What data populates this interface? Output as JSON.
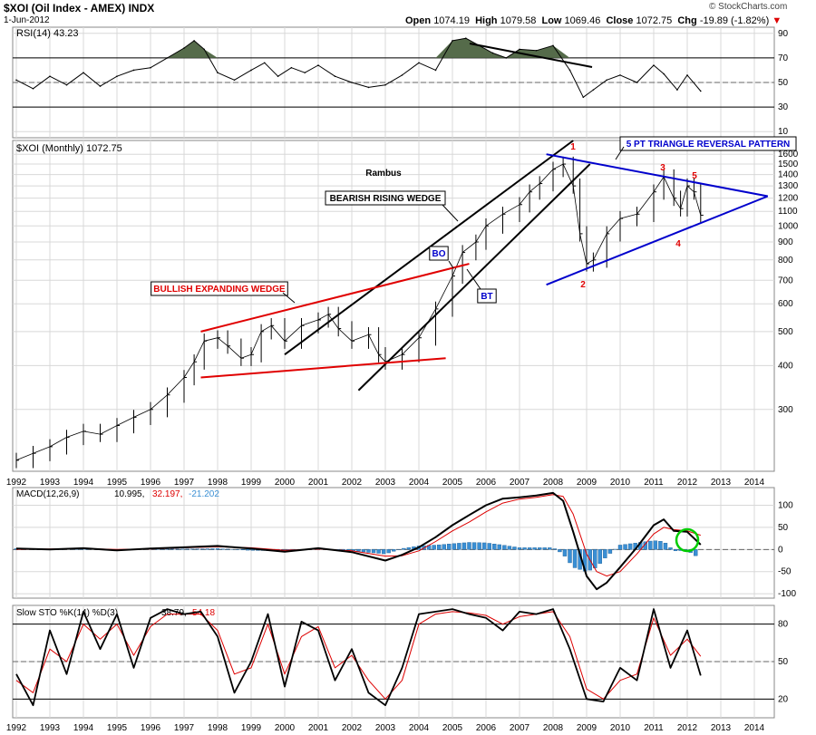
{
  "header": {
    "ticker_line": "$XOI (Oil Index - AMEX) INDX",
    "date": "1-Jun-2012",
    "open_label": "Open",
    "open": "1074.19",
    "high_label": "High",
    "high": "1079.58",
    "low_label": "Low",
    "low": "1069.46",
    "close_label": "Close",
    "close": "1072.75",
    "chg_label": "Chg",
    "chg": "-19.89 (-1.82%)",
    "chg_marker": "▼",
    "watermark": "© StockCharts.com"
  },
  "colors": {
    "price": "#000000",
    "rsi_fill": "#556b4a",
    "macd": "#000000",
    "signal": "#dd0000",
    "hist": "#3a8fd4",
    "red": "#e00000",
    "blue": "#0000cc",
    "green": "#00cc00",
    "grid": "#d8d8d8"
  },
  "chart_data": [
    {
      "type": "line",
      "panel": "rsi",
      "legend": [
        "RSI(14) 43.23"
      ],
      "ylabel": "",
      "yticks": [
        90,
        70,
        50,
        30,
        10
      ],
      "ylim": [
        5,
        95
      ],
      "reference_lines": [
        70,
        50,
        30
      ],
      "series": [
        {
          "name": "RSI(14)",
          "x": [
            1992.0,
            1992.5,
            1993.0,
            1993.5,
            1994.0,
            1994.5,
            1995.0,
            1995.5,
            1996.0,
            1996.5,
            1997.0,
            1997.3,
            1997.6,
            1998.0,
            1998.5,
            1999.0,
            1999.4,
            1999.8,
            2000.2,
            2000.6,
            2001.0,
            2001.5,
            2002.0,
            2002.5,
            2003.0,
            2003.5,
            2004.0,
            2004.5,
            2005.0,
            2005.4,
            2005.8,
            2006.2,
            2006.6,
            2007.0,
            2007.5,
            2008.0,
            2008.5,
            2008.9,
            2009.2,
            2009.6,
            2010.0,
            2010.5,
            2011.0,
            2011.3,
            2011.7,
            2012.0,
            2012.4
          ],
          "values": [
            52,
            45,
            55,
            48,
            58,
            47,
            55,
            60,
            62,
            70,
            78,
            84,
            77,
            58,
            52,
            60,
            66,
            55,
            62,
            58,
            64,
            55,
            50,
            46,
            48,
            56,
            66,
            60,
            84,
            86,
            80,
            74,
            70,
            77,
            76,
            80,
            60,
            38,
            44,
            52,
            56,
            50,
            64,
            57,
            44,
            56,
            43
          ]
        }
      ]
    },
    {
      "type": "line",
      "panel": "price",
      "legend": [
        "$XOI (Monthly) 1072.75"
      ],
      "scale": "log",
      "yticks": [
        1600,
        1500,
        1400,
        1300,
        1200,
        1100,
        1000,
        900,
        800,
        700,
        600,
        500,
        400,
        300
      ],
      "ylim": [
        200,
        1700
      ],
      "xticks": [
        "1992",
        "1993",
        "1994",
        "1995",
        "1996",
        "1997",
        "1998",
        "1999",
        "2000",
        "2001",
        "2002",
        "2003",
        "2004",
        "2005",
        "2006",
        "2007",
        "2008",
        "2009",
        "2010",
        "2011",
        "2012",
        "2013",
        "2014"
      ],
      "series": [
        {
          "name": "$XOI (Monthly)",
          "x": [
            1992.0,
            1992.5,
            1993.0,
            1993.5,
            1994.0,
            1994.5,
            1995.0,
            1995.5,
            1996.0,
            1996.5,
            1997.0,
            1997.3,
            1997.6,
            1998.0,
            1998.3,
            1998.7,
            1999.0,
            1999.3,
            1999.6,
            2000.0,
            2000.5,
            2001.0,
            2001.3,
            2001.6,
            2002.0,
            2002.5,
            2002.8,
            2003.0,
            2003.5,
            2004.0,
            2004.5,
            2005.0,
            2005.3,
            2005.7,
            2006.0,
            2006.5,
            2007.0,
            2007.3,
            2007.6,
            2008.0,
            2008.3,
            2008.6,
            2008.8,
            2009.0,
            2009.2,
            2009.6,
            2010.0,
            2010.5,
            2011.0,
            2011.3,
            2011.6,
            2011.8,
            2012.0,
            2012.2,
            2012.4
          ],
          "values": [
            215,
            225,
            235,
            250,
            260,
            255,
            270,
            285,
            300,
            330,
            370,
            410,
            470,
            480,
            455,
            420,
            430,
            500,
            520,
            470,
            520,
            540,
            560,
            510,
            470,
            490,
            430,
            410,
            430,
            480,
            580,
            720,
            840,
            900,
            1000,
            1080,
            1150,
            1250,
            1320,
            1450,
            1500,
            1300,
            950,
            780,
            800,
            950,
            1050,
            1080,
            1250,
            1380,
            1200,
            1120,
            1300,
            1250,
            1072.75
          ]
        }
      ],
      "annotations": [
        "Rambus",
        "BEARISH RISING WEDGE",
        "BULLISH EXPANDING WEDGE",
        "5 PT TRIANGLE REVERSAL PATTERN",
        "BO",
        "BT",
        "1",
        "2",
        "3",
        "4",
        "5"
      ]
    },
    {
      "type": "line",
      "panel": "macd",
      "legend": [
        "MACD(12,26,9)",
        "10.995,",
        "32.197,",
        "-21.202"
      ],
      "yticks": [
        100,
        50,
        0,
        -50,
        -100
      ],
      "ylim": [
        -110,
        140
      ],
      "x": [
        1992.0,
        1993.0,
        1994.0,
        1995.0,
        1996.0,
        1997.0,
        1998.0,
        1999.0,
        2000.0,
        2001.0,
        2002.0,
        2003.0,
        2003.5,
        2004.0,
        2004.5,
        2005.0,
        2005.5,
        2006.0,
        2006.5,
        2007.0,
        2007.5,
        2008.0,
        2008.3,
        2008.6,
        2009.0,
        2009.3,
        2009.6,
        2010.0,
        2010.5,
        2011.0,
        2011.3,
        2011.6,
        2012.0,
        2012.4
      ],
      "series": [
        {
          "name": "MACD",
          "values": [
            2,
            0,
            3,
            -2,
            2,
            5,
            8,
            2,
            -5,
            3,
            -6,
            -25,
            -12,
            5,
            28,
            55,
            78,
            100,
            115,
            118,
            122,
            128,
            110,
            40,
            -60,
            -90,
            -75,
            -40,
            5,
            55,
            68,
            42,
            40,
            10.995
          ]
        },
        {
          "name": "Signal",
          "values": [
            0,
            1,
            2,
            0,
            1,
            4,
            6,
            4,
            -2,
            1,
            -3,
            -15,
            -14,
            -3,
            18,
            42,
            62,
            85,
            105,
            114,
            118,
            124,
            120,
            80,
            -10,
            -50,
            -60,
            -50,
            -10,
            35,
            50,
            45,
            42,
            32.197
          ]
        },
        {
          "name": "Histogram",
          "values": [
            2,
            -1,
            1,
            -2,
            1,
            1,
            2,
            -2,
            -3,
            2,
            -3,
            -10,
            2,
            8,
            10,
            13,
            16,
            15,
            10,
            4,
            4,
            4,
            -10,
            -40,
            -50,
            -40,
            -15,
            10,
            15,
            20,
            18,
            -3,
            -2,
            -21.202
          ]
        }
      ]
    },
    {
      "type": "line",
      "panel": "stochastic",
      "legend": [
        "Slow STO %K(14) %D(3)",
        "38.79,",
        "54.18"
      ],
      "yticks": [
        80,
        50,
        20
      ],
      "ylim": [
        5,
        95
      ],
      "x": [
        1992.0,
        1992.5,
        1993.0,
        1993.5,
        1994.0,
        1994.5,
        1995.0,
        1995.5,
        1996.0,
        1996.5,
        1997.0,
        1997.5,
        1998.0,
        1998.5,
        1999.0,
        1999.5,
        2000.0,
        2000.5,
        2001.0,
        2001.5,
        2002.0,
        2002.5,
        2003.0,
        2003.5,
        2004.0,
        2004.5,
        2005.0,
        2005.5,
        2006.0,
        2006.5,
        2007.0,
        2007.5,
        2008.0,
        2008.5,
        2009.0,
        2009.5,
        2010.0,
        2010.5,
        2011.0,
        2011.5,
        2012.0,
        2012.4
      ],
      "series": [
        {
          "name": "%K",
          "values": [
            40,
            15,
            75,
            40,
            90,
            60,
            88,
            45,
            85,
            92,
            88,
            90,
            70,
            25,
            50,
            88,
            30,
            82,
            75,
            35,
            60,
            25,
            15,
            45,
            88,
            90,
            92,
            88,
            85,
            75,
            90,
            88,
            92,
            60,
            20,
            18,
            45,
            35,
            92,
            45,
            75,
            38.79
          ]
        },
        {
          "name": "%D",
          "values": [
            35,
            25,
            60,
            50,
            80,
            68,
            80,
            55,
            78,
            88,
            88,
            88,
            75,
            40,
            45,
            80,
            40,
            70,
            78,
            45,
            55,
            35,
            20,
            35,
            80,
            88,
            90,
            89,
            87,
            80,
            86,
            88,
            90,
            70,
            28,
            20,
            35,
            40,
            85,
            55,
            68,
            54.18
          ]
        }
      ]
    }
  ]
}
